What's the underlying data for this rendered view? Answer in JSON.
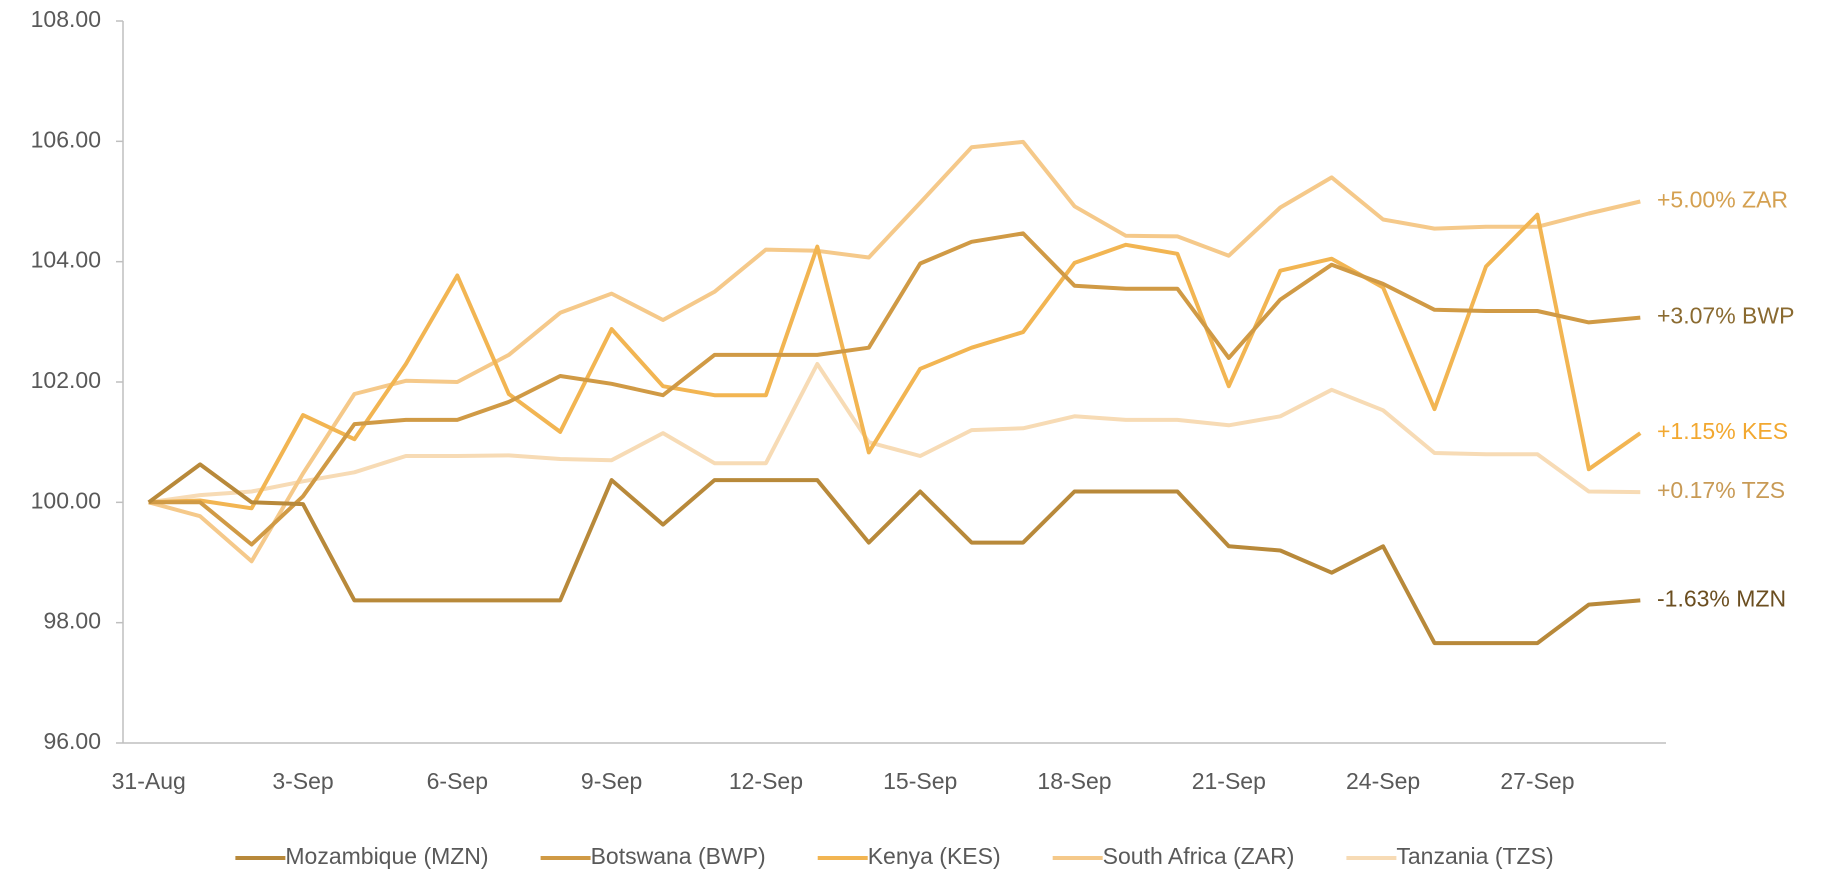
{
  "chart_data": {
    "type": "line",
    "categories": [
      "31-Aug",
      null,
      null,
      "3-Sep",
      null,
      null,
      "6-Sep",
      null,
      null,
      "9-Sep",
      null,
      null,
      "12-Sep",
      null,
      null,
      "15-Sep",
      null,
      null,
      "18-Sep",
      null,
      null,
      "21-Sep",
      null,
      null,
      "24-Sep",
      null,
      null,
      "27-Sep",
      null,
      null
    ],
    "ylim": [
      96,
      108
    ],
    "yticks": [
      {
        "value": 96,
        "label": "96.00"
      },
      {
        "value": 98,
        "label": "98.00"
      },
      {
        "value": 100,
        "label": "100.00"
      },
      {
        "value": 102,
        "label": "102.00"
      },
      {
        "value": 104,
        "label": "104.00"
      },
      {
        "value": 106,
        "label": "106.00"
      },
      {
        "value": 108,
        "label": "108.00"
      }
    ],
    "grid": false,
    "legend": "bottom",
    "series": [
      {
        "name": "Mozambique (MZN)",
        "color": "#b8893a",
        "end_label": "-1.63% MZN",
        "end_label_color": "#6b4e20",
        "values": [
          100,
          100.63,
          100.0,
          99.97,
          98.37,
          98.37,
          98.37,
          98.37,
          98.37,
          100.37,
          99.63,
          100.37,
          100.37,
          100.37,
          99.33,
          100.18,
          99.33,
          99.33,
          100.18,
          100.18,
          100.18,
          99.27,
          99.2,
          98.83,
          99.27,
          97.66,
          97.66,
          97.66,
          98.3,
          98.37
        ]
      },
      {
        "name": "Botswana (BWP)",
        "color": "#d09a45",
        "end_label": "+3.07% BWP",
        "end_label_color": "#8a6a30",
        "values": [
          100,
          100.0,
          99.3,
          100.1,
          101.3,
          101.37,
          101.37,
          101.67,
          102.1,
          101.97,
          101.78,
          102.45,
          102.45,
          102.45,
          102.57,
          103.97,
          104.33,
          104.47,
          103.6,
          103.55,
          103.55,
          102.4,
          103.37,
          103.95,
          103.63,
          103.2,
          103.18,
          103.18,
          102.99,
          103.07
        ]
      },
      {
        "name": "Kenya (KES)",
        "color": "#f2b552",
        "end_label": "+1.15% KES",
        "end_label_color": "#f2a830",
        "values": [
          100,
          100.03,
          99.9,
          101.45,
          101.05,
          102.3,
          103.77,
          101.8,
          101.17,
          102.88,
          101.93,
          101.78,
          101.78,
          104.25,
          100.83,
          102.22,
          102.57,
          102.83,
          103.98,
          104.28,
          104.13,
          101.93,
          103.85,
          104.05,
          103.57,
          101.55,
          103.92,
          104.78,
          100.55,
          101.15
        ]
      },
      {
        "name": "South Africa (ZAR)",
        "color": "#f5c98a",
        "end_label": "+5.00% ZAR",
        "end_label_color": "#d4a050",
        "values": [
          100,
          99.77,
          99.02,
          100.48,
          101.8,
          102.02,
          102.0,
          102.45,
          103.15,
          103.47,
          103.03,
          103.5,
          104.2,
          104.18,
          104.07,
          104.98,
          105.9,
          105.99,
          104.92,
          104.43,
          104.42,
          104.1,
          104.9,
          105.4,
          104.7,
          104.55,
          104.58,
          104.58,
          104.8,
          105.0
        ]
      },
      {
        "name": "Tanzania (TZS)",
        "color": "#f7dbb5",
        "end_label": "+0.17% TZS",
        "end_label_color": "#c89a55",
        "values": [
          100,
          100.12,
          100.18,
          100.35,
          100.5,
          100.77,
          100.77,
          100.78,
          100.72,
          100.7,
          101.15,
          100.65,
          100.65,
          102.3,
          101.0,
          100.77,
          101.2,
          101.23,
          101.43,
          101.37,
          101.37,
          101.28,
          101.43,
          101.87,
          101.53,
          100.82,
          100.8,
          100.8,
          100.18,
          100.17
        ]
      }
    ]
  }
}
